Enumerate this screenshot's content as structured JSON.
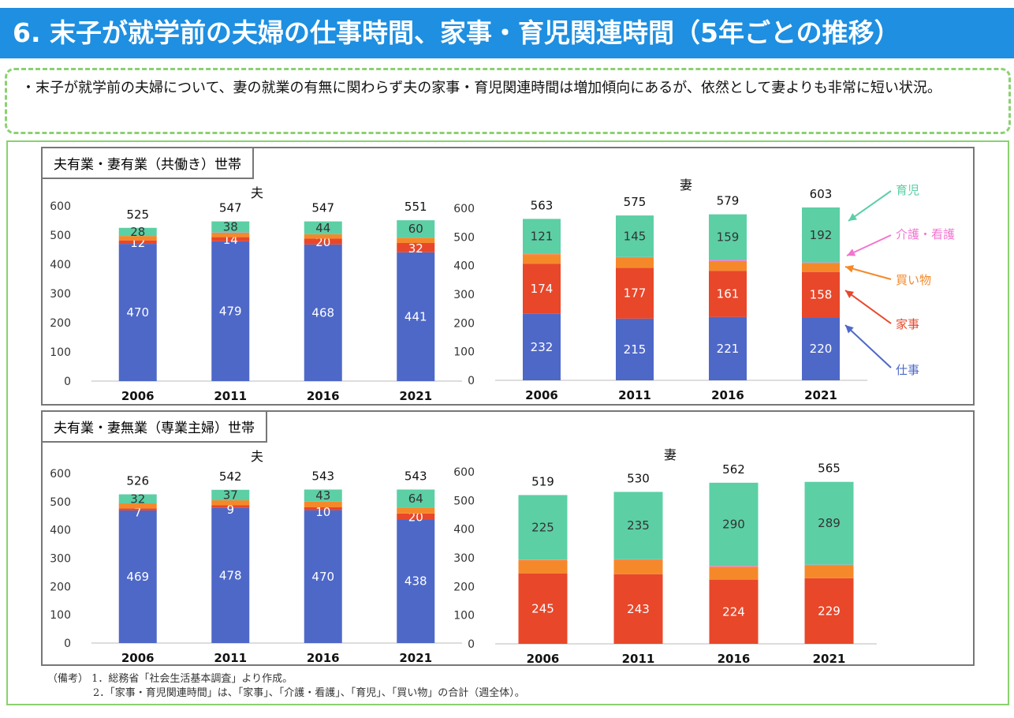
{
  "title": "6. 末子が就学前の夫婦の仕事時間、家事・育児関連時間（5年ごとの推移）",
  "summary": "・末子が就学前の夫婦について、妻の就業の有無に関わらず夫の家事・育児関連時間は増加傾向にあるが、依然として妻よりも非常に短い状況。",
  "colors": {
    "work": "#4e68c8",
    "housework": "#e8472a",
    "shopping": "#f5892a",
    "care": "#f275d0",
    "childcare": "#5ccfa5",
    "title_bg": "#1e8fe1",
    "border_green": "#8bd170"
  },
  "sections": [
    {
      "label": "夫有業・妻有業（共働き）世帯"
    },
    {
      "label": "夫有業・妻無業（専業主婦）世帯"
    }
  ],
  "legend": [
    "育児",
    "介護・看護",
    "買い物",
    "家事",
    "仕事"
  ],
  "chart_data": [
    {
      "type": "bar",
      "stacked": true,
      "title": "夫",
      "section": "夫有業・妻有業（共働き）世帯",
      "categories": [
        "2006",
        "2011",
        "2016",
        "2021"
      ],
      "series": [
        {
          "name": "仕事",
          "values": [
            470,
            479,
            468,
            441
          ]
        },
        {
          "name": "家事",
          "values": [
            12,
            14,
            20,
            32
          ]
        },
        {
          "name": "買い物",
          "values": [
            15,
            15,
            15,
            18
          ]
        },
        {
          "name": "介護・看護",
          "values": [
            0,
            1,
            0,
            0
          ]
        },
        {
          "name": "育児",
          "values": [
            28,
            38,
            44,
            60
          ]
        }
      ],
      "labels": {
        "仕事": [
          "470",
          "479",
          "468",
          "441"
        ],
        "家事": [
          "12",
          "14",
          "20",
          "32"
        ],
        "育児": [
          "28",
          "38",
          "44",
          "60"
        ]
      },
      "totals": [
        "525",
        "547",
        "547",
        "551"
      ],
      "yticks": [
        "0",
        "100",
        "200",
        "300",
        "400",
        "500",
        "600"
      ],
      "ylim": [
        0,
        600
      ]
    },
    {
      "type": "bar",
      "stacked": true,
      "title": "妻",
      "section": "夫有業・妻有業（共働き）世帯",
      "categories": [
        "2006",
        "2011",
        "2016",
        "2021"
      ],
      "series": [
        {
          "name": "仕事",
          "values": [
            232,
            215,
            221,
            220
          ]
        },
        {
          "name": "家事",
          "values": [
            174,
            177,
            161,
            158
          ]
        },
        {
          "name": "買い物",
          "values": [
            34,
            36,
            34,
            31
          ]
        },
        {
          "name": "介護・看護",
          "values": [
            2,
            2,
            4,
            2
          ]
        },
        {
          "name": "育児",
          "values": [
            121,
            145,
            159,
            192
          ]
        }
      ],
      "labels": {
        "仕事": [
          "232",
          "215",
          "221",
          "220"
        ],
        "家事": [
          "174",
          "177",
          "161",
          "158"
        ],
        "育児": [
          "121",
          "145",
          "159",
          "192"
        ]
      },
      "totals": [
        "563",
        "575",
        "579",
        "603"
      ],
      "yticks": [
        "0",
        "100",
        "200",
        "300",
        "400",
        "500",
        "600"
      ],
      "ylim": [
        0,
        600
      ]
    },
    {
      "type": "bar",
      "stacked": true,
      "title": "夫",
      "section": "夫有業・妻無業（専業主婦）世帯",
      "categories": [
        "2006",
        "2011",
        "2016",
        "2021"
      ],
      "series": [
        {
          "name": "仕事",
          "values": [
            469,
            478,
            470,
            438
          ]
        },
        {
          "name": "家事",
          "values": [
            7,
            9,
            10,
            20
          ]
        },
        {
          "name": "買い物",
          "values": [
            18,
            18,
            20,
            21
          ]
        },
        {
          "name": "介護・看護",
          "values": [
            0,
            0,
            0,
            0
          ]
        },
        {
          "name": "育児",
          "values": [
            32,
            37,
            43,
            64
          ]
        }
      ],
      "labels": {
        "仕事": [
          "469",
          "478",
          "470",
          "438"
        ],
        "家事": [
          "7",
          "9",
          "10",
          "20"
        ],
        "育児": [
          "32",
          "37",
          "43",
          "64"
        ]
      },
      "totals": [
        "526",
        "542",
        "543",
        "543"
      ],
      "yticks": [
        "0",
        "100",
        "200",
        "300",
        "400",
        "500",
        "600"
      ],
      "ylim": [
        0,
        600
      ]
    },
    {
      "type": "bar",
      "stacked": true,
      "title": "妻",
      "section": "夫有業・妻無業（専業主婦）世帯",
      "categories": [
        "2006",
        "2011",
        "2016",
        "2021"
      ],
      "series": [
        {
          "name": "仕事",
          "values": [
            0,
            0,
            0,
            0
          ]
        },
        {
          "name": "家事",
          "values": [
            245,
            243,
            224,
            229
          ]
        },
        {
          "name": "買い物",
          "values": [
            47,
            50,
            45,
            45
          ]
        },
        {
          "name": "介護・看護",
          "values": [
            2,
            2,
            3,
            2
          ]
        },
        {
          "name": "育児",
          "values": [
            225,
            235,
            290,
            289
          ]
        }
      ],
      "labels": {
        "家事": [
          "245",
          "243",
          "224",
          "229"
        ],
        "育児": [
          "225",
          "235",
          "290",
          "289"
        ]
      },
      "totals": [
        "519",
        "530",
        "562",
        "565"
      ],
      "yticks": [
        "0",
        "100",
        "200",
        "300",
        "400",
        "500",
        "600"
      ],
      "ylim": [
        0,
        600
      ]
    }
  ],
  "notes": {
    "line1": "（備考） 1．総務省「社会生活基本調査」より作成。",
    "line2": "2．「家事・育児関連時間」は、「家事」、「介護・看護」、「育児」、「買い物」の合計（週全体）。"
  }
}
